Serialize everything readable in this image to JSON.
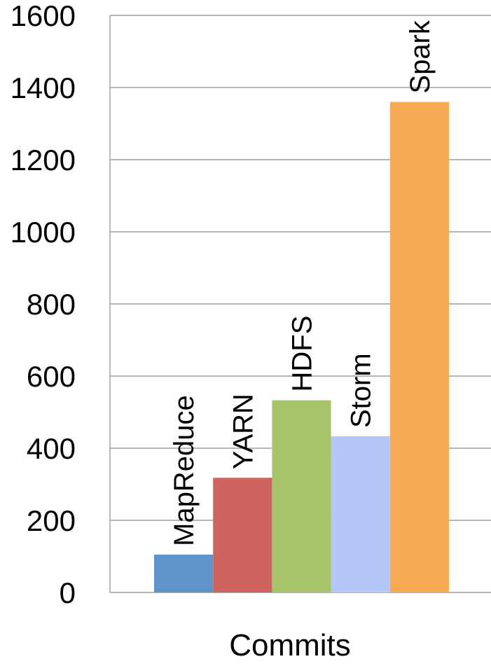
{
  "chart_data": {
    "type": "bar",
    "title": "",
    "xlabel": "Commits",
    "ylabel": "",
    "ylim": [
      0,
      1600
    ],
    "yticks": [
      "0",
      "200",
      "400",
      "600",
      "800",
      "1000",
      "1200",
      "1400",
      "1600"
    ],
    "grid": true,
    "legend": "none",
    "series": [
      {
        "name": "MapReduce",
        "value": 105,
        "color": "#5f94c8",
        "label": "MapReduce"
      },
      {
        "name": "YARN",
        "value": 318,
        "color": "#cd645e",
        "label": "YARN"
      },
      {
        "name": "HDFS",
        "value": 533,
        "color": "#a8c46b",
        "label": "HDFS"
      },
      {
        "name": "Storm",
        "value": 433,
        "color": "#b4c8f8",
        "label": "Storm"
      },
      {
        "name": "Spark",
        "value": 1360,
        "color": "#f8a954",
        "label": "Spark"
      }
    ]
  }
}
